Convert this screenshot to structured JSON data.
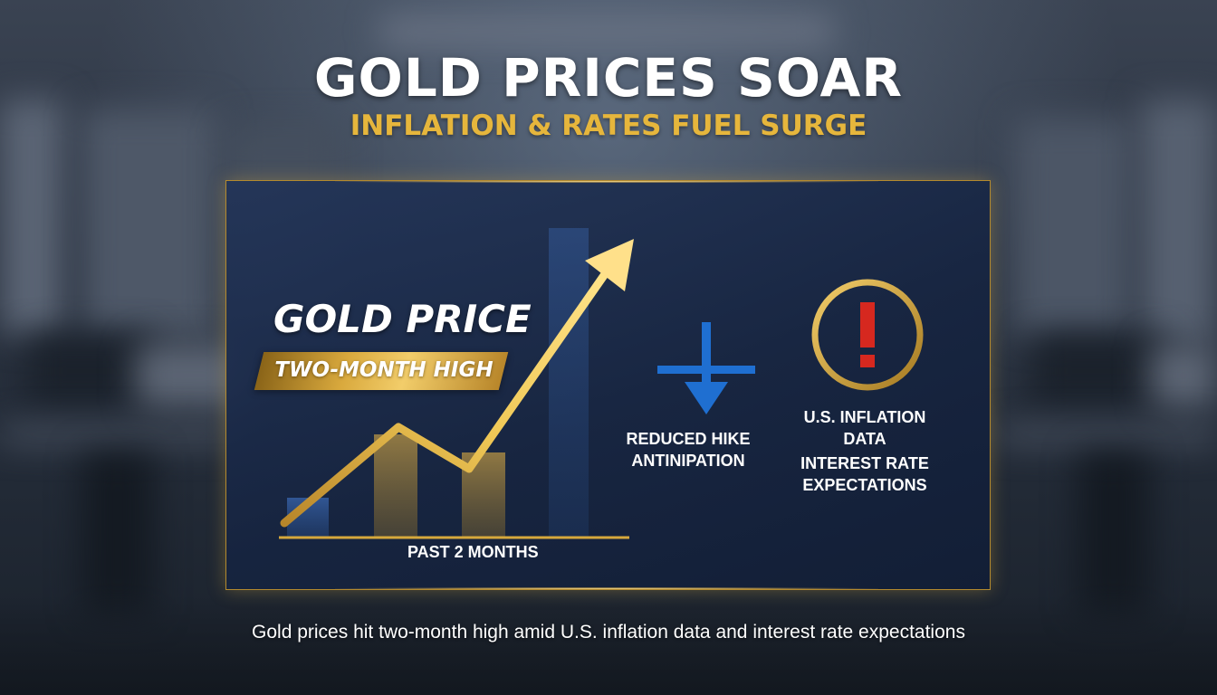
{
  "header": {
    "title": "GOLD PRICES SOAR",
    "subtitle": "INFLATION & RATES FUEL SURGE"
  },
  "panel": {
    "chart_title": "GOLD PRICE",
    "banner": "TWO-MONTH HIGH",
    "x_caption": "PAST 2 MONTHS",
    "down_factor": {
      "icon": "down-arrow-icon",
      "lines": [
        "REDUCED HIKE",
        "ANTINIPATION"
      ]
    },
    "alert_factor": {
      "icon": "exclamation-circle-icon",
      "lines": [
        "U.S. INFLATION",
        "DATA"
      ],
      "lines2": [
        "INTEREST RATE",
        "EXPECTATIONS"
      ]
    }
  },
  "caption": "Gold prices hit two-month high amid U.S. inflation data and interest rate expectations",
  "colors": {
    "gold": "#e6b63c",
    "panel": "#1c2d52",
    "blue_arrow": "#1f6fd1",
    "alert_red": "#d6281f"
  }
}
